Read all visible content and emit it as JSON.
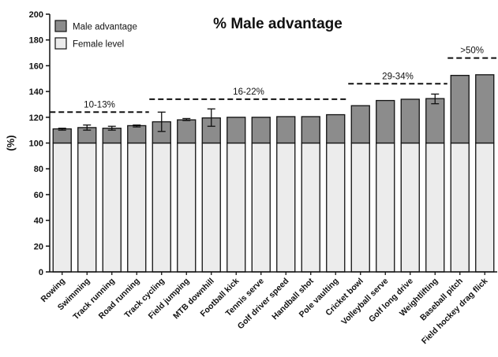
{
  "chart_data": {
    "type": "bar",
    "stacked": true,
    "title": "% Male advantage",
    "ylabel": "(%)",
    "xlabel": "",
    "ylim": [
      0,
      200
    ],
    "yticks": [
      0,
      20,
      40,
      60,
      80,
      100,
      120,
      140,
      160,
      180,
      200
    ],
    "grid": false,
    "legend_position": "top-left",
    "categories": [
      "Rowing",
      "Swimming",
      "Track running",
      "Road running",
      "Track cycling",
      "Field jumping",
      "MTB downhill",
      "Football kick",
      "Tennis serve",
      "Golf driver speed",
      "Handball shot",
      "Pole vaulting",
      "Cricket bowl",
      "Volleyball serve",
      "Golf long drive",
      "Weightlifting",
      "Baseball pitch",
      "Field hockey drag flick"
    ],
    "series": [
      {
        "name": "Female level",
        "color": "#ececec",
        "values": [
          100,
          100,
          100,
          100,
          100,
          100,
          100,
          100,
          100,
          100,
          100,
          100,
          100,
          100,
          100,
          100,
          100,
          100
        ]
      },
      {
        "name": "Male advantage",
        "color": "#8c8c8c",
        "values": [
          11,
          12,
          11.5,
          13.5,
          16.5,
          18,
          19.5,
          20,
          20,
          20.5,
          20.5,
          22,
          29,
          33,
          34,
          34.5,
          52.5,
          53
        ]
      }
    ],
    "error_bars": [
      {
        "category": "Rowing",
        "low": 110,
        "high": 111.5
      },
      {
        "category": "Swimming",
        "low": 110,
        "high": 114
      },
      {
        "category": "Track running",
        "low": 110,
        "high": 113
      },
      {
        "category": "Road running",
        "low": 112.5,
        "high": 114
      },
      {
        "category": "Track cycling",
        "low": 109,
        "high": 124
      },
      {
        "category": "Field jumping",
        "low": 117.5,
        "high": 119
      },
      {
        "category": "MTB downhill",
        "low": 113,
        "high": 126.5
      },
      {
        "category": "Weightlifting",
        "low": 130.5,
        "high": 138
      }
    ],
    "annotations": [
      {
        "text": "10-13%",
        "from": "Rowing",
        "to": "Road running",
        "y": 124
      },
      {
        "text": "16-22%",
        "from": "Track cycling",
        "to": "Pole vaulting",
        "y": 134
      },
      {
        "text": "29-34%",
        "from": "Cricket bowl",
        "to": "Weightlifting",
        "y": 146
      },
      {
        "text": ">50%",
        "from": "Baseball pitch",
        "to": "Field hockey drag flick",
        "y": 166
      }
    ]
  }
}
